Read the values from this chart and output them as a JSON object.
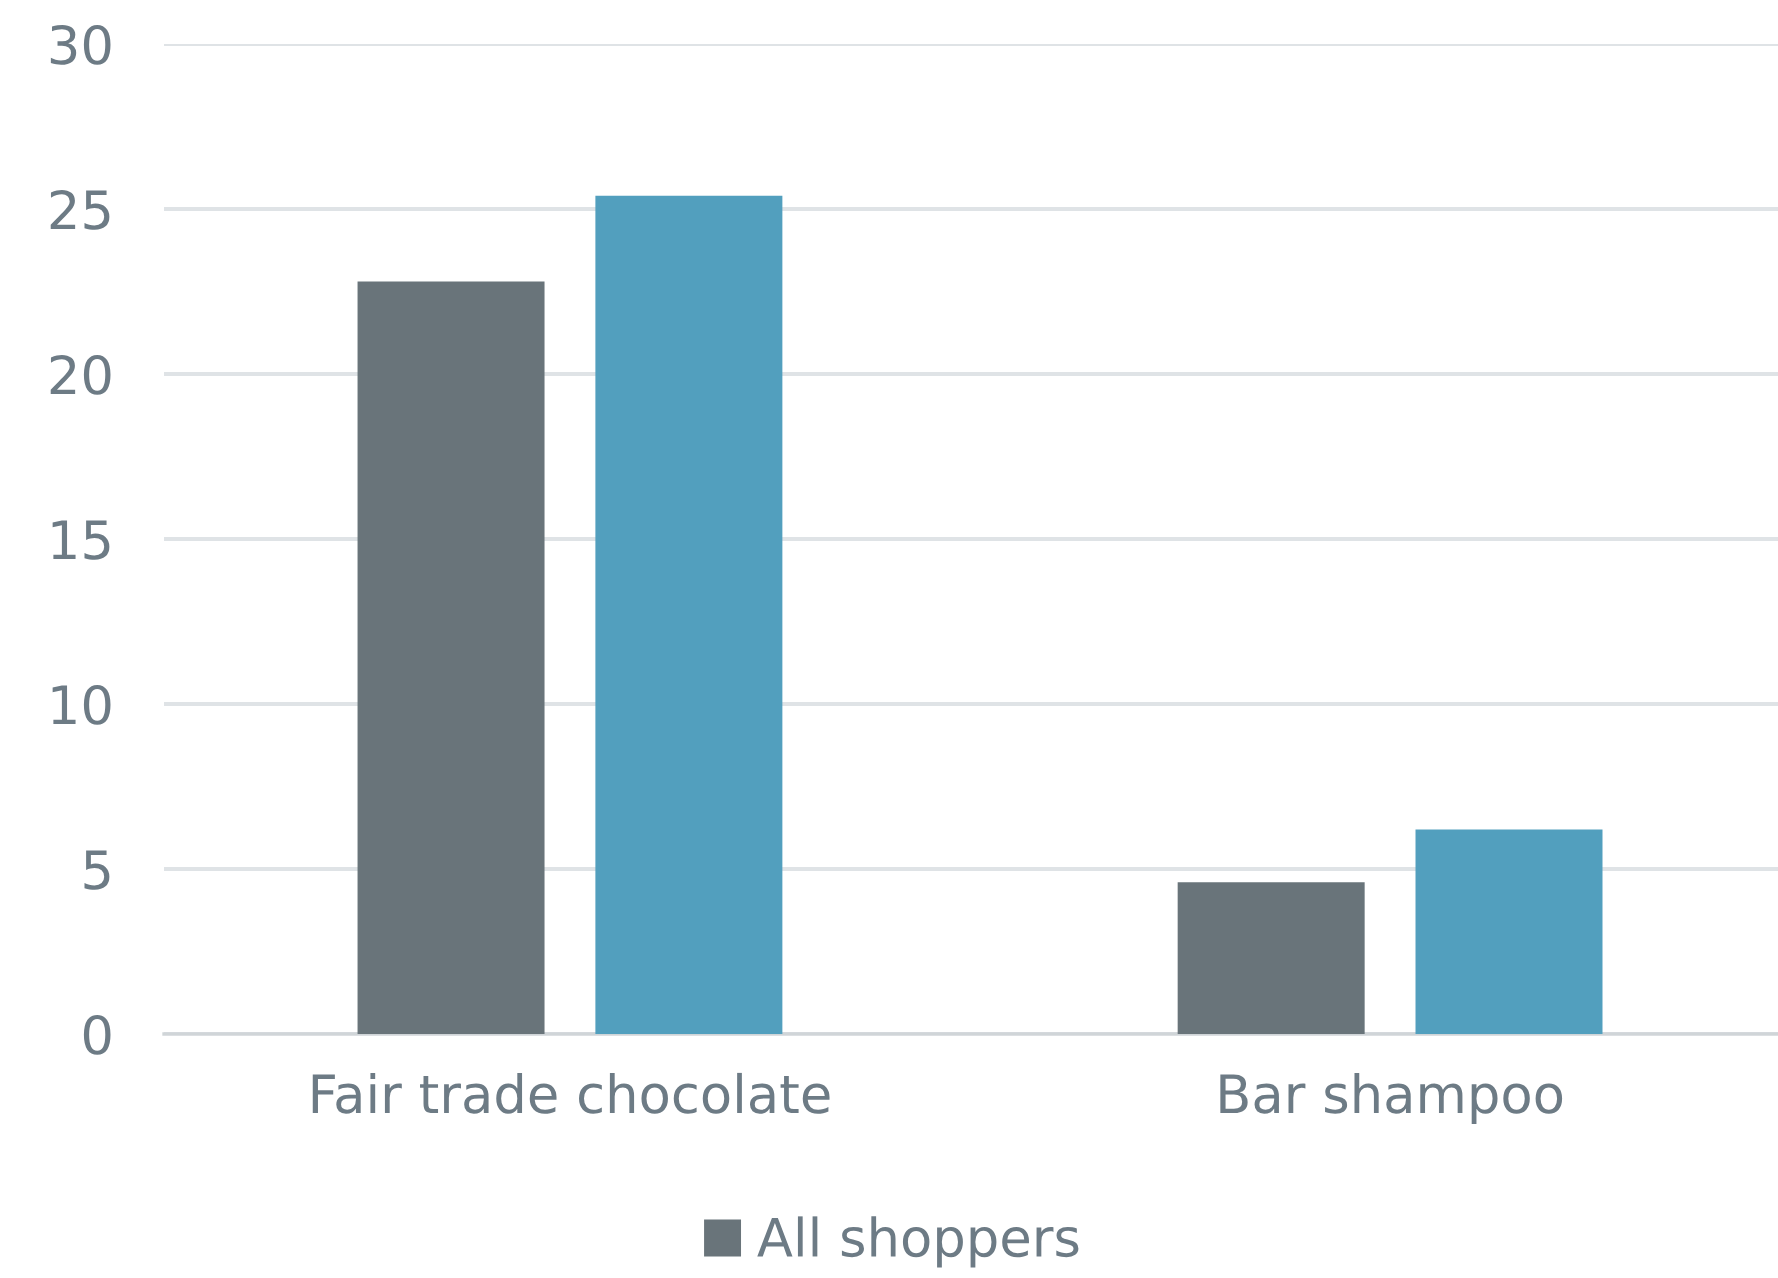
{
  "chart_data": {
    "type": "bar",
    "categories": [
      "Fair trade chocolate",
      "Bar shampoo"
    ],
    "series": [
      {
        "name": "All shoppers",
        "color": "#69747a",
        "values": [
          22.8,
          4.6
        ]
      },
      {
        "color": "#529fbe",
        "values": [
          25.4,
          6.2
        ]
      }
    ],
    "ylim": [
      0,
      30
    ],
    "yticks": [
      0,
      5,
      10,
      15,
      20,
      25,
      30
    ],
    "grid": "y",
    "legend": "bottom"
  }
}
